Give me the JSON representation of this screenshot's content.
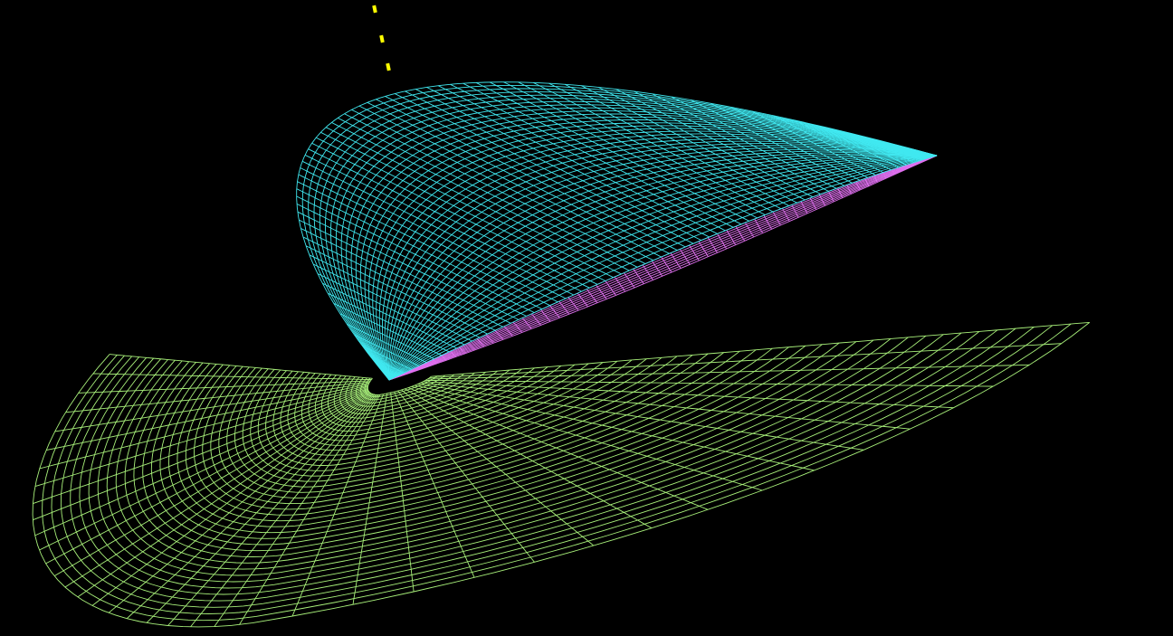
{
  "scene": {
    "background": "#000000",
    "meshes": [
      {
        "name": "ground-plane-mesh",
        "color": "#a8f07a"
      },
      {
        "name": "wing-lower-surface-mesh",
        "color": "#e070f0"
      },
      {
        "name": "wing-upper-surface-mesh",
        "color": "#40e8f0"
      }
    ],
    "markers": {
      "color": "#ffff00",
      "count": 3
    }
  }
}
